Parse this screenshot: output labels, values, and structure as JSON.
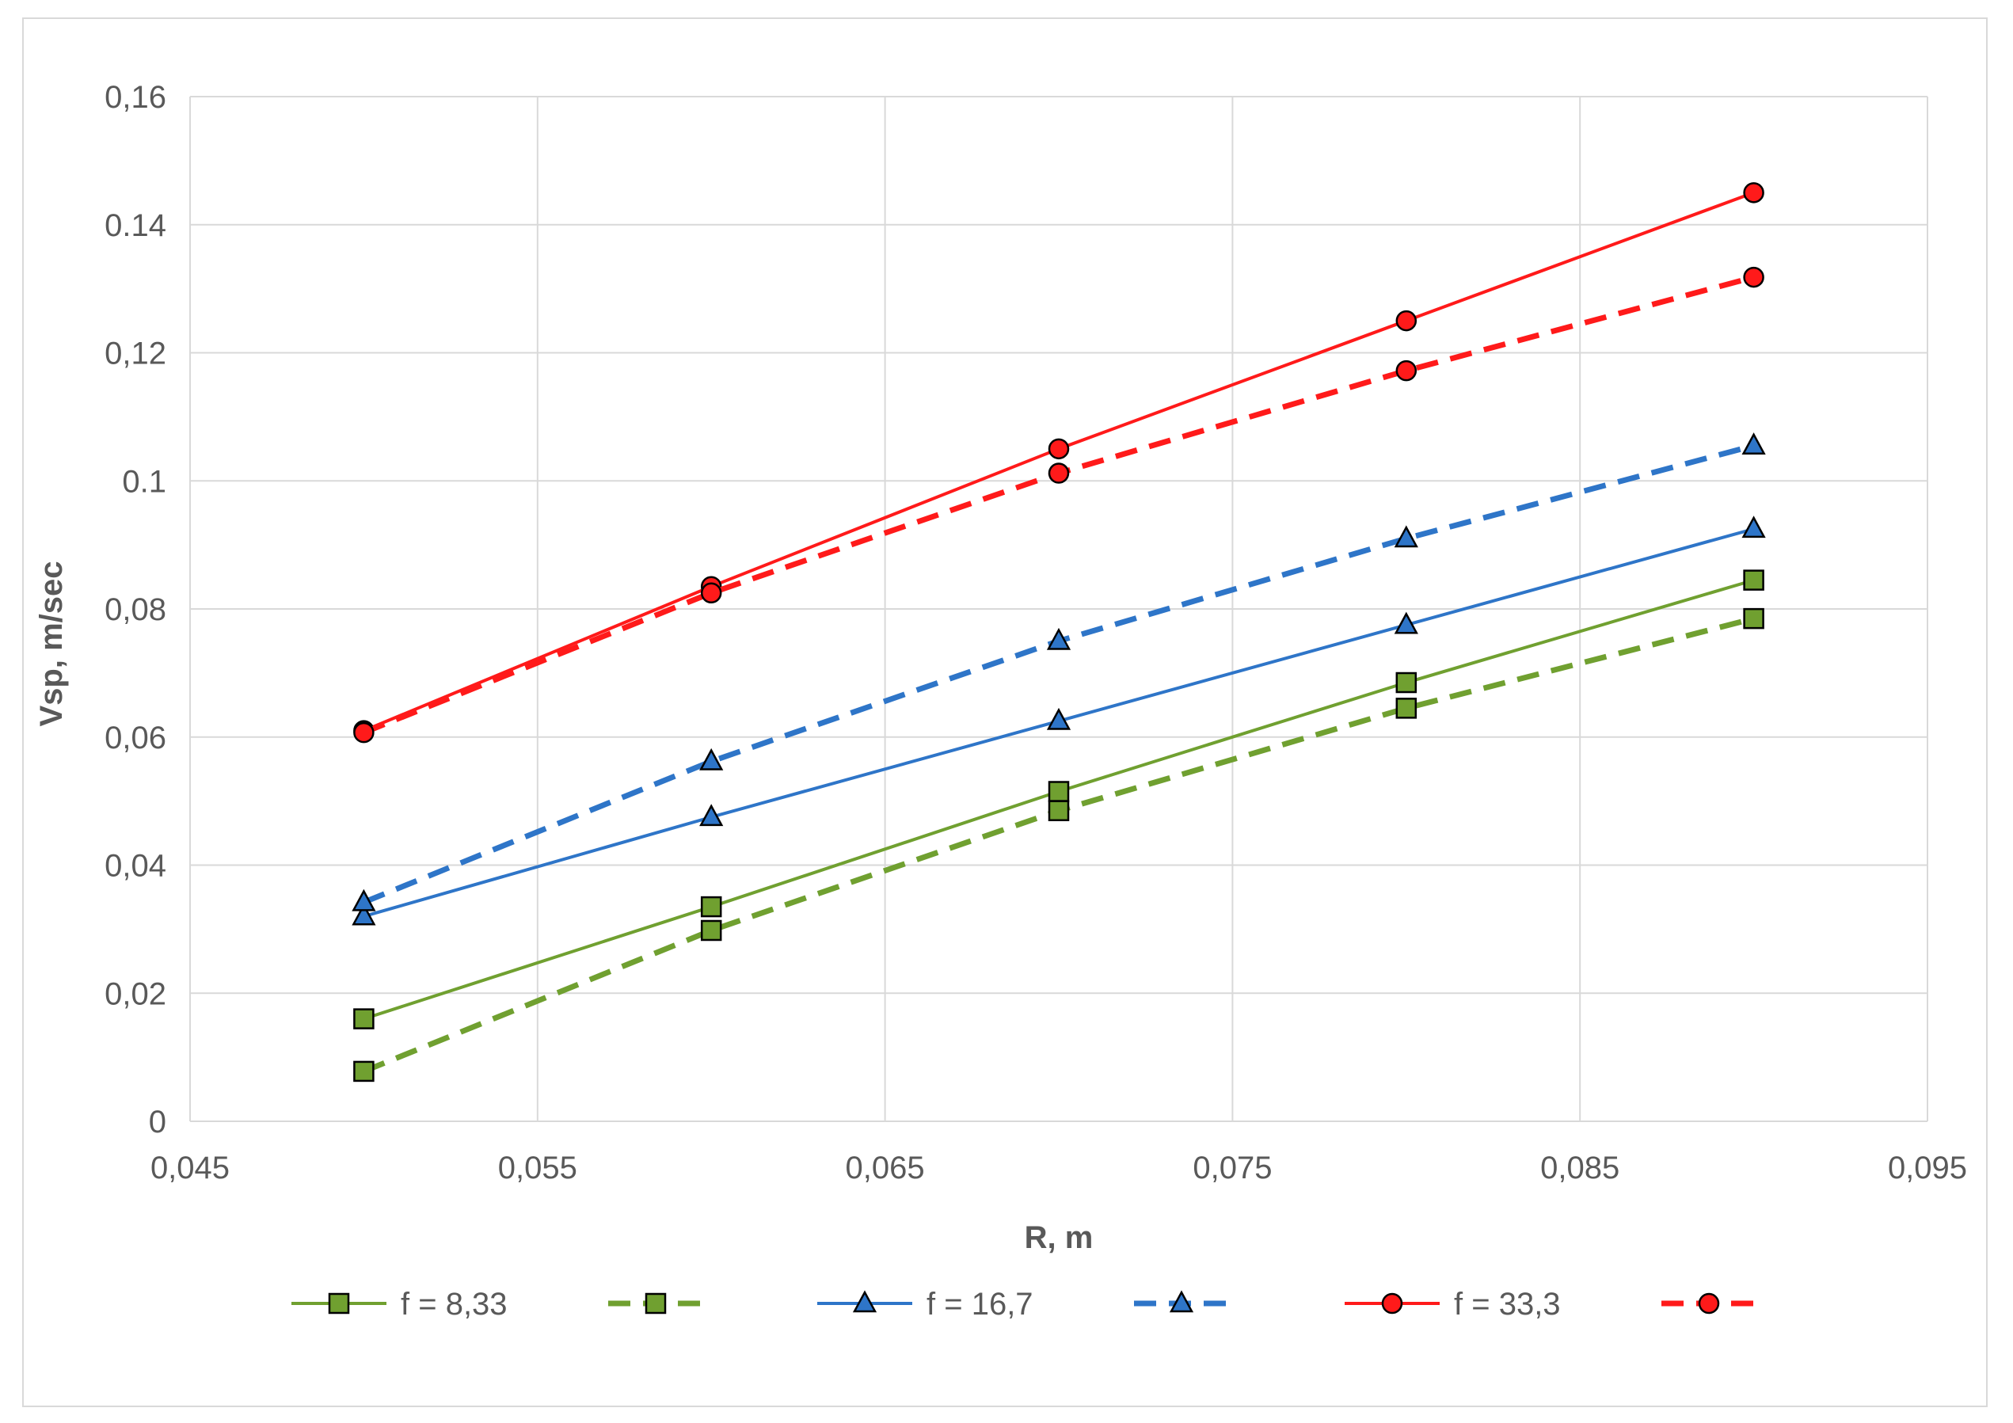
{
  "chart_data": {
    "type": "line",
    "xlabel": "R, m",
    "ylabel": "Vsp, m/sec",
    "xlim": [
      0.045,
      0.095
    ],
    "ylim": [
      0,
      0.16
    ],
    "grid": true,
    "legend_position": "bottom",
    "x_ticks": [
      0.045,
      0.055,
      0.065,
      0.075,
      0.085,
      0.095
    ],
    "x_tick_labels": [
      "0,045",
      "0,055",
      "0,065",
      "0,075",
      "0,085",
      "0,095"
    ],
    "y_ticks": [
      0,
      0.02,
      0.04,
      0.06,
      0.08,
      0.1,
      0.12,
      0.14,
      0.16
    ],
    "y_tick_labels": [
      "0",
      "0,02",
      "0,04",
      "0,06",
      "0,08",
      "0.1",
      "0,12",
      "0.14",
      "0,16"
    ],
    "x": [
      0.05,
      0.06,
      0.07,
      0.08,
      0.09
    ],
    "series": [
      {
        "name": "f = 8,33",
        "color": "#70a030",
        "marker": "square",
        "dashed": false,
        "values": [
          0.016,
          0.0335,
          0.0515,
          0.0685,
          0.0845
        ]
      },
      {
        "name": "",
        "color": "#70a030",
        "marker": "square",
        "dashed": true,
        "values": [
          0.0078,
          0.0298,
          0.0485,
          0.0645,
          0.0785
        ]
      },
      {
        "name": "f = 16,7",
        "color": "#2e75c8",
        "marker": "triangle",
        "dashed": false,
        "values": [
          0.032,
          0.0475,
          0.0625,
          0.0775,
          0.0925
        ]
      },
      {
        "name": "",
        "color": "#2e75c8",
        "marker": "triangle",
        "dashed": true,
        "values": [
          0.0342,
          0.0562,
          0.075,
          0.091,
          0.1055
        ]
      },
      {
        "name": "f = 33,3",
        "color": "#ff1a1a",
        "marker": "circle",
        "dashed": false,
        "values": [
          0.061,
          0.0835,
          0.105,
          0.125,
          0.145
        ]
      },
      {
        "name": "",
        "color": "#ff1a1a",
        "marker": "circle",
        "dashed": true,
        "values": [
          0.0607,
          0.0825,
          0.1012,
          0.1172,
          0.1318
        ]
      }
    ]
  }
}
